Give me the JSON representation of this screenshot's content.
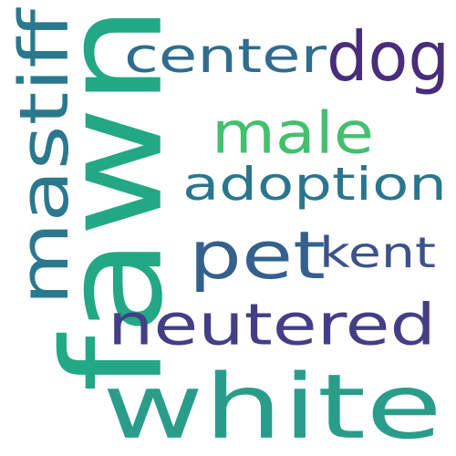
{
  "words": [
    {
      "key": "fawn",
      "text": "fawn",
      "color": "#22a884"
    },
    {
      "key": "white",
      "text": "white",
      "color": "#2a9d8a"
    },
    {
      "key": "neutered",
      "text": "neutered",
      "color": "#433e85"
    },
    {
      "key": "mastiff",
      "text": "mastiff",
      "color": "#2a788e"
    },
    {
      "key": "center",
      "text": "center",
      "color": "#2f6c8e"
    },
    {
      "key": "dog",
      "text": "dog",
      "color": "#472d7b"
    },
    {
      "key": "male",
      "text": "male",
      "color": "#44bf70"
    },
    {
      "key": "adoption",
      "text": "adoption",
      "color": "#2b758e"
    },
    {
      "key": "pet",
      "text": "pet",
      "color": "#35608d"
    },
    {
      "key": "kent",
      "text": "kent",
      "color": "#3b528b"
    }
  ]
}
